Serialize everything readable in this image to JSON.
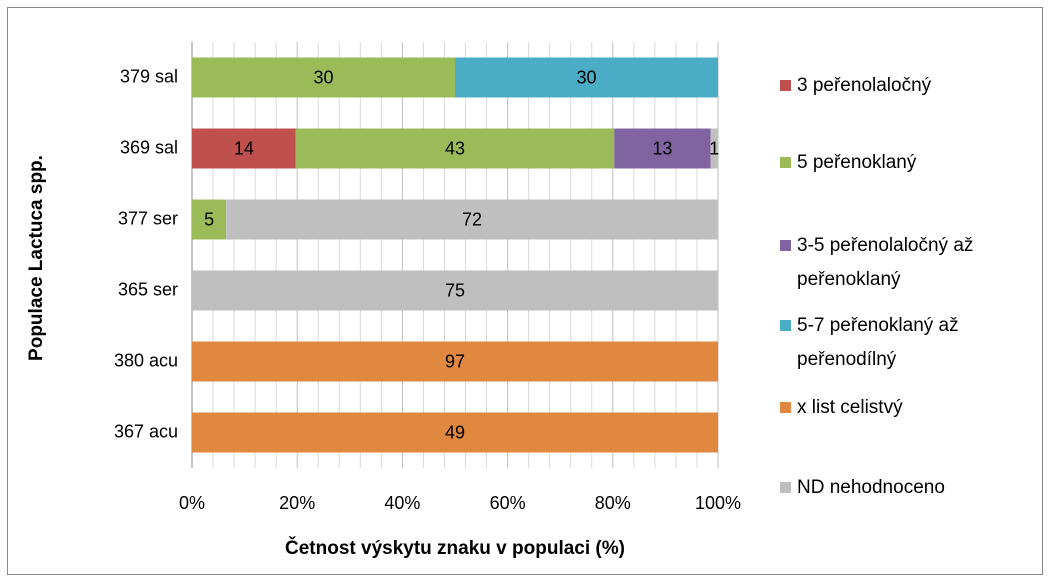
{
  "chart_data": {
    "type": "bar",
    "orientation": "horizontal",
    "stacking": "percent",
    "x_label": "Četnost výskytu znaku v populaci (%)",
    "y_label": "Populace Lactuca spp.",
    "categories": [
      "379 sal",
      "369 sal",
      "377 ser",
      "365 ser",
      "380 acu",
      "367 acu"
    ],
    "series": [
      {
        "name": "3 peřenolaločný",
        "color": "#c0504d",
        "values": [
          null,
          14,
          null,
          null,
          null,
          null
        ]
      },
      {
        "name": "5 peřenoklaný",
        "color": "#9bbb59",
        "values": [
          30,
          43,
          5,
          null,
          null,
          null
        ]
      },
      {
        "name": "3-5 peřenolaločný až peřenoklaný",
        "color": "#8064a2",
        "values": [
          null,
          13,
          null,
          null,
          null,
          null
        ]
      },
      {
        "name": "5-7 peřenoklaný až peřenodílný",
        "color": "#4bacc6",
        "values": [
          30,
          null,
          null,
          null,
          null,
          null
        ]
      },
      {
        "name": "x list celistvý",
        "color": "#e0883f",
        "values": [
          null,
          null,
          null,
          null,
          97,
          49
        ]
      },
      {
        "name": "ND nehodnoceno",
        "color": "#bfbfbf",
        "values": [
          null,
          1,
          72,
          75,
          null,
          null
        ]
      }
    ],
    "xlim": [
      0,
      100
    ],
    "xticks": [
      {
        "value": 0,
        "label": "0%"
      },
      {
        "value": 20,
        "label": "20%"
      },
      {
        "value": 40,
        "label": "40%"
      },
      {
        "value": 60,
        "label": "60%"
      },
      {
        "value": 80,
        "label": "80%"
      },
      {
        "value": 100,
        "label": "100%"
      }
    ],
    "grid": true,
    "legend": "right"
  }
}
